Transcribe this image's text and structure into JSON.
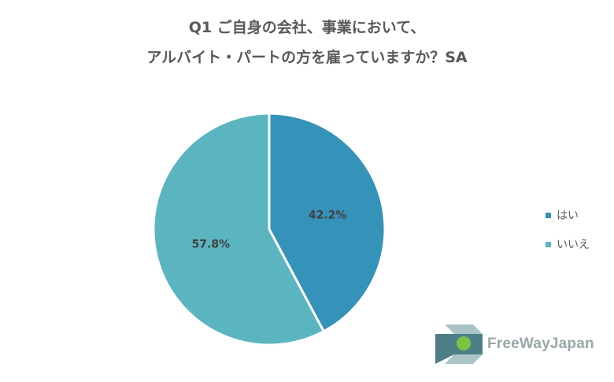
{
  "title": {
    "line1": "Q1 ご自身の会社、事業において、",
    "line2": "アルバイト・パートの方を雇っていますか？SA"
  },
  "chart_data": {
    "type": "pie",
    "categories": [
      "はい",
      "いいえ"
    ],
    "values": [
      42.2,
      57.8
    ],
    "labels": [
      "42.2%",
      "57.8%"
    ],
    "colors": [
      "#3592b8",
      "#5bb5c0"
    ],
    "legend_position": "right"
  },
  "logo": {
    "text": "FreeWayJapan",
    "colors": {
      "dark": "#4e7f88",
      "light": "#a9c3c7",
      "green": "#7cc243"
    }
  }
}
